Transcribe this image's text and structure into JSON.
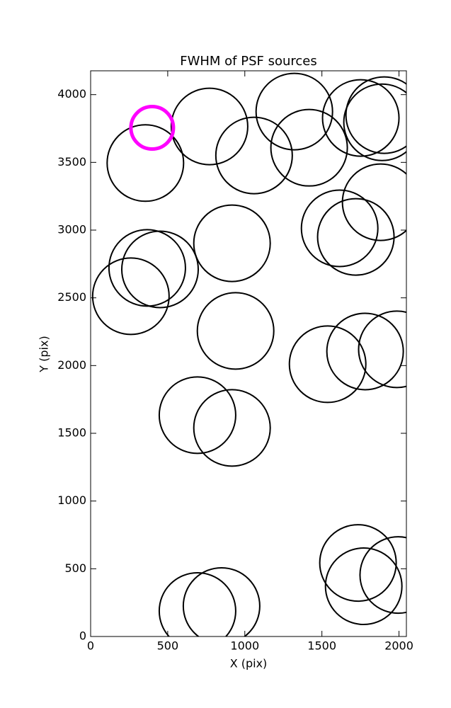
{
  "chart_data": {
    "type": "scatter",
    "title": "FWHM of PSF sources",
    "x_label": "X (pix)",
    "y_label": "Y (pix)",
    "xlim": [
      0,
      2048
    ],
    "ylim": [
      0,
      4176
    ],
    "xticks": [
      0,
      500,
      1000,
      1500,
      2000
    ],
    "yticks": [
      0,
      500,
      1000,
      1500,
      2000,
      2500,
      3000,
      3500,
      4000
    ],
    "series": [
      {
        "color": "#000000",
        "marker": "open-circle",
        "marker_size": 108,
        "line_width": 2,
        "x": [
          355,
          771,
          1060,
          1321,
          1417,
          1752,
          1904,
          1890,
          1881,
          1615,
          1720,
          917,
          367,
          450,
          261,
          940,
          1537,
          1780,
          1986,
          693,
          917,
          1734,
          1771,
          1995,
          693,
          849
        ],
        "y": [
          3495,
          3765,
          3551,
          3875,
          3608,
          3828,
          3849,
          3796,
          3206,
          3013,
          2950,
          2903,
          2721,
          2710,
          2512,
          2256,
          2010,
          2104,
          2120,
          1634,
          1540,
          543,
          371,
          454,
          188,
          225
        ]
      },
      {
        "color": "#ff00ff",
        "marker": "open-circle",
        "marker_size": 60,
        "line_width": 5,
        "x": [
          399
        ],
        "y": [
          3755
        ]
      }
    ]
  }
}
